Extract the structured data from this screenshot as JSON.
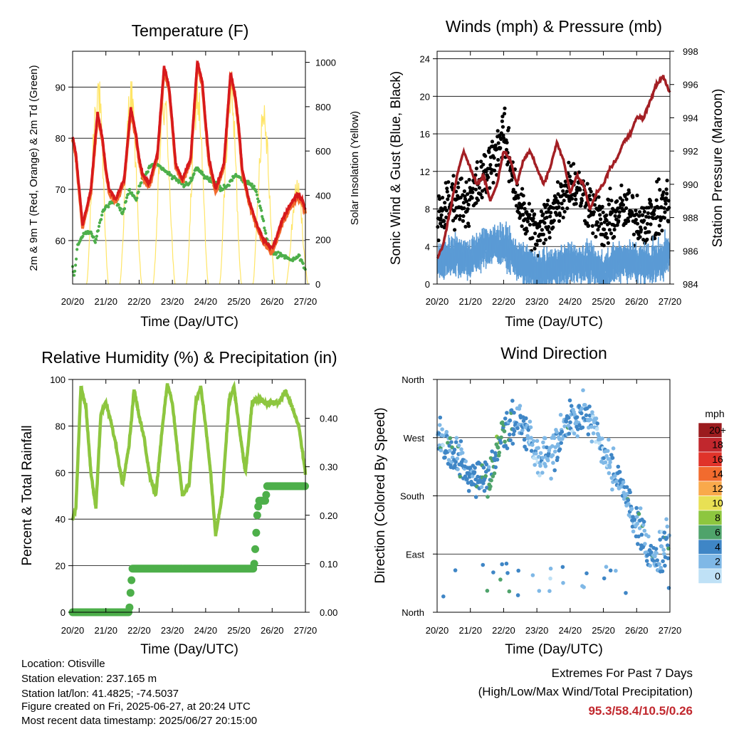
{
  "time_ticks": [
    "20/20",
    "21/20",
    "22/20",
    "23/20",
    "24/20",
    "25/20",
    "26/20",
    "27/20"
  ],
  "temperature_panel": {
    "title": "Temperature (F)",
    "xlabel": "Time (Day/UTC)",
    "ylabel_left": "2m & 9m T (Red, Orange) & 2m Td (Green)",
    "ylabel_right": "Solar Insolation (Yellow)"
  },
  "winds_panel": {
    "title": "Winds (mph) & Pressure (mb)",
    "xlabel": "Time (Day/UTC)",
    "ylabel_left": "Sonic Wind & Gust (Blue, Black)",
    "ylabel_right": "Station Pressure (Maroon)"
  },
  "humidity_panel": {
    "title": "Relative Humidity (%) & Precipitation (in)",
    "xlabel": "Time (Day/UTC)",
    "ylabel_left": "Percent & Total Rainfall"
  },
  "direction_panel": {
    "title": "Wind Direction",
    "xlabel": "Time (Day/UTC)",
    "ylabel_left": "Direction (Colored By Speed)",
    "colorbar_unit": "mph",
    "colorbar_labels": [
      "20+",
      "18",
      "16",
      "14",
      "12",
      "10",
      "8",
      "6",
      "4",
      "2",
      "0"
    ],
    "colorbar_colors": [
      "#9b1b1e",
      "#c1272d",
      "#e0332a",
      "#f26b2e",
      "#f9a94b",
      "#e8e054",
      "#8dc63f",
      "#4fa36b",
      "#3f86c6",
      "#7fb8e6",
      "#bfe1f6"
    ]
  },
  "footer": {
    "location": "Location: Otisville",
    "elevation": "Station elevation: 237.165 m",
    "latlon": "Station lat/lon: 41.4825; -74.5037",
    "created": "Figure created on Fri, 2025-06-27, at 20:24 UTC",
    "recent": "Most recent data timestamp: 2025/06/27 20:15:00"
  },
  "extremes": {
    "title": "Extremes For Past 7 Days",
    "subtitle": "(High/Low/Max Wind/Total Precipitation)",
    "values": "95.3/58.4/10.5/0.26"
  },
  "chart_data": [
    {
      "type": "line",
      "title": "Temperature (F)",
      "xlabel": "Time (Day/UTC)",
      "ylabel": "2m & 9m T (Red, Orange) & 2m Td (Green)",
      "ylabel_right": "Solar Insolation (Yellow)",
      "x_ticks": [
        "20/20",
        "21/20",
        "22/20",
        "23/20",
        "24/20",
        "25/20",
        "26/20",
        "27/20"
      ],
      "xlim_days": [
        0,
        7
      ],
      "ylim": [
        51.5,
        97
      ],
      "y_ticks": [
        60,
        70,
        80,
        90
      ],
      "ylim_right": [
        0,
        1050
      ],
      "y_ticks_right": [
        0,
        200,
        400,
        600,
        800,
        1000
      ],
      "grid": true,
      "colors": {
        "t2m": "#d7191c",
        "t9m": "#f26b2e",
        "td": "#4daf4a",
        "solar": "#ffe566"
      },
      "series": [
        {
          "key": "t2m",
          "x": [
            0,
            0.1,
            0.3,
            0.55,
            0.75,
            0.9,
            1.0,
            1.1,
            1.3,
            1.55,
            1.75,
            1.9,
            2.0,
            2.1,
            2.3,
            2.55,
            2.75,
            2.9,
            3.0,
            3.1,
            3.3,
            3.55,
            3.75,
            3.9,
            4.0,
            4.1,
            4.3,
            4.55,
            4.75,
            4.9,
            5.0,
            5.1,
            5.3,
            5.55,
            5.75,
            5.9,
            6.0,
            6.1,
            6.3,
            6.55,
            6.75,
            6.9,
            7.0
          ],
          "values": [
            80.5,
            77,
            63,
            70,
            85,
            80,
            74,
            70,
            68,
            72,
            86,
            81,
            76,
            73,
            71,
            77,
            94,
            90,
            83,
            75,
            72,
            76,
            95,
            91,
            83,
            76,
            70,
            75,
            93,
            88,
            82,
            74,
            68,
            63,
            60,
            59,
            58.5,
            60,
            64,
            67,
            69,
            68,
            66
          ]
        },
        {
          "key": "td",
          "x": [
            0,
            0.05,
            0.15,
            0.3,
            0.5,
            0.7,
            0.9,
            1.1,
            1.3,
            1.5,
            1.7,
            1.9,
            2.1,
            2.3,
            2.5,
            2.7,
            2.9,
            3.1,
            3.3,
            3.5,
            3.7,
            3.9,
            4.1,
            4.3,
            4.5,
            4.7,
            4.9,
            5.1,
            5.3,
            5.5,
            5.7,
            5.85,
            6.0,
            6.2,
            6.4,
            6.6,
            6.8,
            6.9,
            7.0
          ],
          "values": [
            55,
            53,
            59,
            61,
            62,
            60,
            66,
            67,
            68,
            65,
            70,
            68,
            72,
            74,
            75,
            74,
            73,
            72,
            71,
            71,
            74,
            73,
            72,
            71,
            70,
            71,
            73,
            72,
            71,
            70,
            65,
            60,
            58,
            57,
            57,
            56,
            57,
            56,
            54
          ]
        },
        {
          "key": "solar",
          "peaks_days": [
            0.75,
            1.75,
            2.75,
            3.75,
            4.75,
            5.75,
            6.75
          ],
          "peaks_values": [
            1000,
            950,
            920,
            960,
            980,
            880,
            480
          ]
        }
      ]
    },
    {
      "type": "scatter",
      "title": "Winds (mph) & Pressure (mb)",
      "xlabel": "Time (Day/UTC)",
      "ylabel": "Sonic Wind & Gust (Blue, Black)",
      "ylabel_right": "Station Pressure (Maroon)",
      "x_ticks": [
        "20/20",
        "21/20",
        "22/20",
        "23/20",
        "24/20",
        "25/20",
        "26/20",
        "27/20"
      ],
      "ylim": [
        0,
        24.8
      ],
      "y_ticks": [
        0,
        4,
        8,
        12,
        16,
        20,
        24
      ],
      "ylim_right": [
        984,
        998
      ],
      "y_ticks_right": [
        984,
        986,
        988,
        990,
        992,
        994,
        996,
        998
      ],
      "grid": true,
      "colors": {
        "wind": "#5b9bd5",
        "gust": "#000000",
        "pressure": "#a31f24"
      },
      "series": [
        {
          "key": "wind",
          "mean_x": [
            0,
            0.5,
            1,
            1.5,
            2,
            2.5,
            3,
            3.5,
            4,
            4.5,
            5,
            5.5,
            6,
            6.5,
            7
          ],
          "mean_values": [
            3,
            4,
            3.5,
            5,
            5,
            3,
            2,
            2.5,
            3,
            3,
            2,
            3.5,
            3,
            3,
            4
          ]
        },
        {
          "key": "gust",
          "mean_x": [
            0,
            0.5,
            1,
            1.5,
            2,
            2.5,
            3,
            3.5,
            4,
            4.5,
            5,
            5.5,
            6,
            6.5,
            7
          ],
          "mean_values": [
            7,
            9,
            9,
            12,
            16,
            8,
            5,
            8,
            11,
            9,
            6,
            8,
            7,
            7,
            9
          ]
        },
        {
          "key": "pressure",
          "x": [
            0,
            0.2,
            0.4,
            0.6,
            0.8,
            1.0,
            1.2,
            1.4,
            1.6,
            1.8,
            2.0,
            2.2,
            2.4,
            2.6,
            2.8,
            3.0,
            3.2,
            3.4,
            3.6,
            3.8,
            4.0,
            4.2,
            4.4,
            4.6,
            4.8,
            5.0,
            5.2,
            5.4,
            5.6,
            5.8,
            6.0,
            6.2,
            6.4,
            6.6,
            6.8,
            7.0
          ],
          "values": [
            985.5,
            986.5,
            988.5,
            990.5,
            992,
            991,
            990,
            990.5,
            989,
            990,
            992,
            991.5,
            990,
            991.5,
            992,
            991,
            990,
            991,
            992.5,
            991.5,
            989.5,
            990.5,
            990,
            988.5,
            989.5,
            990,
            991,
            991.5,
            992.5,
            993,
            994,
            994,
            995,
            996,
            996.5,
            995.5
          ]
        }
      ]
    },
    {
      "type": "line",
      "title": "Relative Humidity (%) & Precipitation (in)",
      "xlabel": "Time (Day/UTC)",
      "ylabel": "Percent & Total Rainfall",
      "x_ticks": [
        "20/20",
        "21/20",
        "22/20",
        "23/20",
        "24/20",
        "25/20",
        "26/20",
        "27/20"
      ],
      "ylim": [
        0,
        100
      ],
      "y_ticks": [
        0,
        20,
        40,
        60,
        80,
        100
      ],
      "ylim_right": [
        0,
        0.48
      ],
      "y_ticks_right": [
        "0.00",
        "0.10",
        "0.20",
        "0.30",
        "0.40"
      ],
      "grid": true,
      "colors": {
        "rh": "#8dc63f",
        "precip": "#4daf4a"
      },
      "series": [
        {
          "key": "rh",
          "x": [
            0,
            0.1,
            0.25,
            0.4,
            0.55,
            0.7,
            0.85,
            1.0,
            1.15,
            1.3,
            1.5,
            1.7,
            1.85,
            2.0,
            2.15,
            2.3,
            2.5,
            2.7,
            2.85,
            3.0,
            3.15,
            3.3,
            3.5,
            3.7,
            3.85,
            4.0,
            4.15,
            4.3,
            4.5,
            4.7,
            4.85,
            5.0,
            5.2,
            5.4,
            5.6,
            5.8,
            6.0,
            6.2,
            6.4,
            6.6,
            6.8,
            7.0
          ],
          "values": [
            40,
            45,
            97,
            88,
            60,
            45,
            85,
            90,
            82,
            72,
            55,
            72,
            96,
            84,
            75,
            60,
            50,
            80,
            98,
            90,
            70,
            50,
            55,
            90,
            97,
            80,
            60,
            33,
            50,
            90,
            97,
            80,
            60,
            90,
            92,
            90,
            90,
            90,
            95,
            88,
            80,
            60
          ]
        },
        {
          "key": "precip",
          "x": [
            0,
            1.7,
            1.75,
            1.8,
            5.45,
            5.5,
            5.55,
            5.6,
            5.8,
            5.85,
            7.0
          ],
          "values": [
            0,
            0,
            0.05,
            0.09,
            0.09,
            0.14,
            0.2,
            0.23,
            0.23,
            0.26,
            0.26
          ]
        }
      ]
    },
    {
      "type": "scatter",
      "title": "Wind Direction",
      "xlabel": "Time (Day/UTC)",
      "ylabel": "Direction (Colored By Speed)",
      "x_ticks": [
        "20/20",
        "21/20",
        "22/20",
        "23/20",
        "24/20",
        "25/20",
        "26/20",
        "27/20"
      ],
      "y_ticks": [
        "North",
        "East",
        "South",
        "West",
        "North"
      ],
      "ylim_deg": [
        0,
        360
      ],
      "grid": true,
      "colorbar": {
        "unit": "mph",
        "labels": [
          "20+",
          "18",
          "16",
          "14",
          "12",
          "10",
          "8",
          "6",
          "4",
          "2",
          "0"
        ]
      },
      "mean_direction_x": [
        0,
        0.5,
        1,
        1.5,
        2,
        2.5,
        3,
        3.5,
        4,
        4.5,
        5,
        5.5,
        6,
        6.5,
        7
      ],
      "mean_direction_deg": [
        270,
        250,
        210,
        200,
        280,
        300,
        240,
        250,
        300,
        310,
        250,
        200,
        140,
        80,
        110
      ]
    }
  ]
}
